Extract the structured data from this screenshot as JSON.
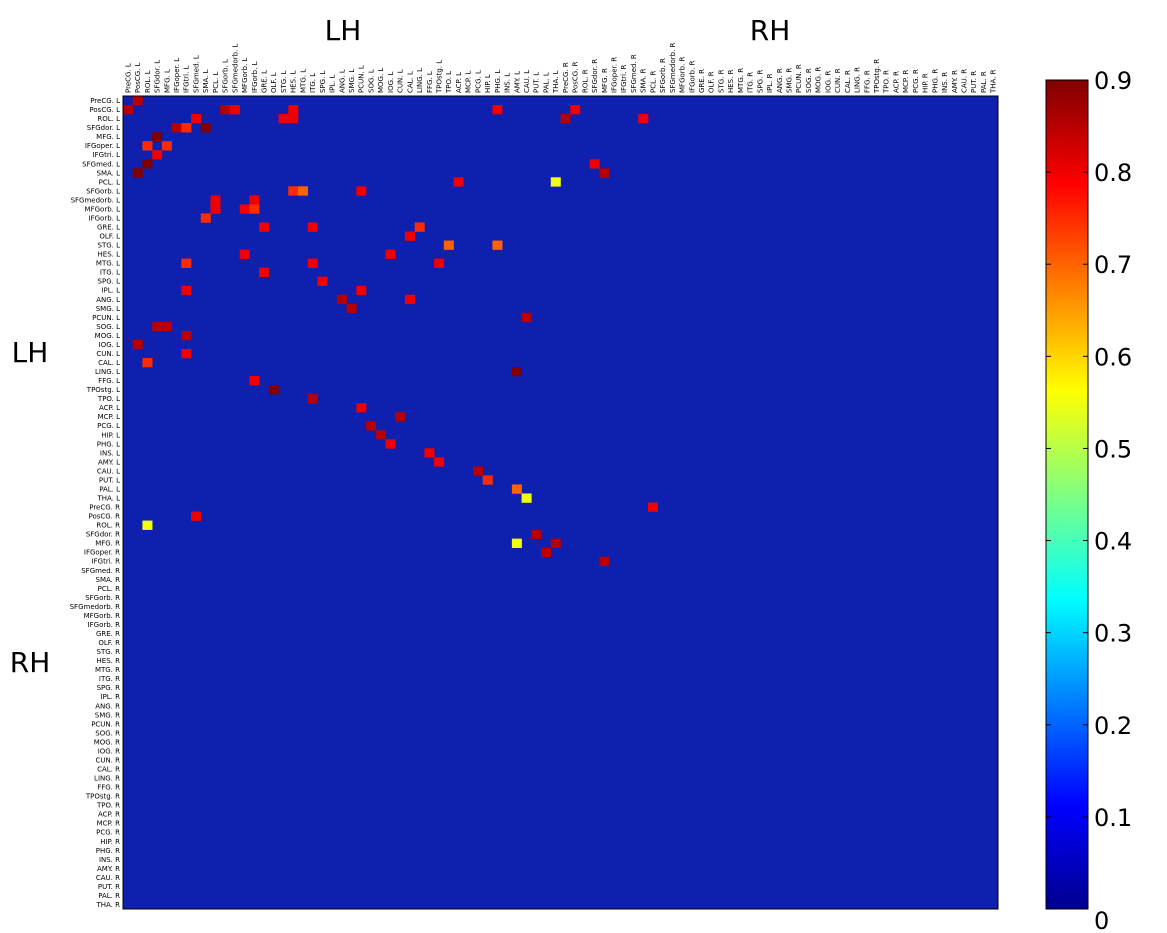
{
  "chart_data": {
    "type": "heatmap",
    "title": "",
    "xlabel": "",
    "ylabel": "",
    "group_labels": {
      "top_left": "LH",
      "top_right": "RH",
      "side_upper": "LH",
      "side_lower": "RH"
    },
    "labels": [
      "PreCG. L",
      "PosCG. L",
      "ROL. L",
      "SFGdor. L",
      "MFG. L",
      "IFGoper. L",
      "IFGtri. L",
      "SFGmed. L",
      "SMA. L",
      "PCL. L",
      "SFGorb. L",
      "SFGmedorb. L",
      "MFGorb. L",
      "IFGorb. L",
      "GRE. L",
      "OLF. L",
      "STG. L",
      "HES. L",
      "MTG. L",
      "ITG. L",
      "SPG. L",
      "IPL. L",
      "ANG. L",
      "SMG. L",
      "PCUN. L",
      "SOG. L",
      "MOG. L",
      "IOG. L",
      "CUN. L",
      "CAL. L",
      "LING. L",
      "FFG. L",
      "TPOstg. L",
      "TPO. L",
      "ACP. L",
      "MCP. L",
      "PCG. L",
      "HIP. L",
      "PHG. L",
      "INS. L",
      "AMY. L",
      "CAU. L",
      "PUT. L",
      "PAL. L",
      "THA. L",
      "PreCG. R",
      "PosCG. R",
      "ROL. R",
      "SFGdor. R",
      "MFG. R",
      "IFGoper. R",
      "IFGtri. R",
      "SFGmed. R",
      "SMA. R",
      "PCL. R",
      "SFGorb. R",
      "SFGmedorb. R",
      "MFGorb. R",
      "IFGorb. R",
      "GRE. R",
      "OLF. R",
      "STG. R",
      "HES. R",
      "MTG. R",
      "ITG. R",
      "SPG. R",
      "IPL. R",
      "ANG. R",
      "SMG. R",
      "PCUN. R",
      "SOG. R",
      "MOG. R",
      "IOG. R",
      "CUN. R",
      "CAL. R",
      "LING. R",
      "FFG. R",
      "TPOstg. R",
      "TPO. R",
      "ACP. R",
      "MCP. R",
      "PCG. R",
      "HIP. R",
      "PHG. R",
      "INS. R",
      "AMY. R",
      "CAU. R",
      "PUT. R",
      "PAL. R",
      "THA. R"
    ],
    "background_value": 0,
    "cells": [
      [
        0,
        1,
        0.85
      ],
      [
        1,
        0,
        0.85
      ],
      [
        1,
        10,
        0.85
      ],
      [
        1,
        11,
        0.8
      ],
      [
        1,
        17,
        0.8
      ],
      [
        1,
        38,
        0.8
      ],
      [
        1,
        46,
        0.8
      ],
      [
        2,
        7,
        0.8
      ],
      [
        2,
        16,
        0.8
      ],
      [
        2,
        17,
        0.8
      ],
      [
        2,
        45,
        0.85
      ],
      [
        2,
        53,
        0.8
      ],
      [
        3,
        5,
        0.85
      ],
      [
        3,
        6,
        0.75
      ],
      [
        3,
        8,
        0.9
      ],
      [
        4,
        3,
        0.9
      ],
      [
        5,
        2,
        0.75
      ],
      [
        5,
        4,
        0.75
      ],
      [
        6,
        3,
        0.8
      ],
      [
        7,
        2,
        0.9
      ],
      [
        7,
        48,
        0.8
      ],
      [
        8,
        1,
        0.9
      ],
      [
        8,
        49,
        0.85
      ],
      [
        9,
        34,
        0.8
      ],
      [
        9,
        44,
        0.55
      ],
      [
        10,
        17,
        0.75
      ],
      [
        10,
        18,
        0.7
      ],
      [
        10,
        24,
        0.8
      ],
      [
        11,
        9,
        0.8
      ],
      [
        11,
        13,
        0.8
      ],
      [
        12,
        9,
        0.8
      ],
      [
        12,
        12,
        0.8
      ],
      [
        12,
        13,
        0.75
      ],
      [
        13,
        8,
        0.75
      ],
      [
        14,
        14,
        0.8
      ],
      [
        14,
        19,
        0.8
      ],
      [
        14,
        30,
        0.75
      ],
      [
        15,
        29,
        0.8
      ],
      [
        16,
        33,
        0.7
      ],
      [
        16,
        38,
        0.7
      ],
      [
        17,
        12,
        0.8
      ],
      [
        17,
        27,
        0.8
      ],
      [
        18,
        6,
        0.75
      ],
      [
        18,
        19,
        0.8
      ],
      [
        18,
        32,
        0.8
      ],
      [
        19,
        14,
        0.8
      ],
      [
        20,
        20,
        0.8
      ],
      [
        21,
        6,
        0.8
      ],
      [
        21,
        24,
        0.8
      ],
      [
        22,
        22,
        0.85
      ],
      [
        22,
        29,
        0.8
      ],
      [
        23,
        23,
        0.85
      ],
      [
        24,
        41,
        0.85
      ],
      [
        25,
        3,
        0.85
      ],
      [
        25,
        4,
        0.85
      ],
      [
        26,
        6,
        0.85
      ],
      [
        27,
        1,
        0.85
      ],
      [
        28,
        6,
        0.8
      ],
      [
        29,
        2,
        0.75
      ],
      [
        30,
        40,
        0.9
      ],
      [
        31,
        13,
        0.8
      ],
      [
        32,
        15,
        0.9
      ],
      [
        33,
        19,
        0.85
      ],
      [
        34,
        24,
        0.8
      ],
      [
        35,
        28,
        0.85
      ],
      [
        36,
        25,
        0.85
      ],
      [
        37,
        26,
        0.85
      ],
      [
        38,
        27,
        0.8
      ],
      [
        39,
        31,
        0.8
      ],
      [
        40,
        32,
        0.8
      ],
      [
        41,
        36,
        0.85
      ],
      [
        42,
        37,
        0.75
      ],
      [
        43,
        40,
        0.7
      ],
      [
        44,
        41,
        0.55
      ],
      [
        45,
        54,
        0.8
      ],
      [
        46,
        7,
        0.8
      ],
      [
        47,
        2,
        0.55
      ],
      [
        48,
        42,
        0.85
      ],
      [
        49,
        40,
        0.55
      ],
      [
        49,
        44,
        0.85
      ],
      [
        50,
        43,
        0.85
      ],
      [
        51,
        49,
        0.85
      ]
    ]
  },
  "colorbar": {
    "ticks": [
      "0.9",
      "0.8",
      "0.7",
      "0.6",
      "0.5",
      "0.4",
      "0.3",
      "0.2",
      "0.1",
      "0"
    ],
    "min": 0,
    "max": 0.9,
    "colormap": "jet",
    "background_color": "#0f1fae"
  }
}
